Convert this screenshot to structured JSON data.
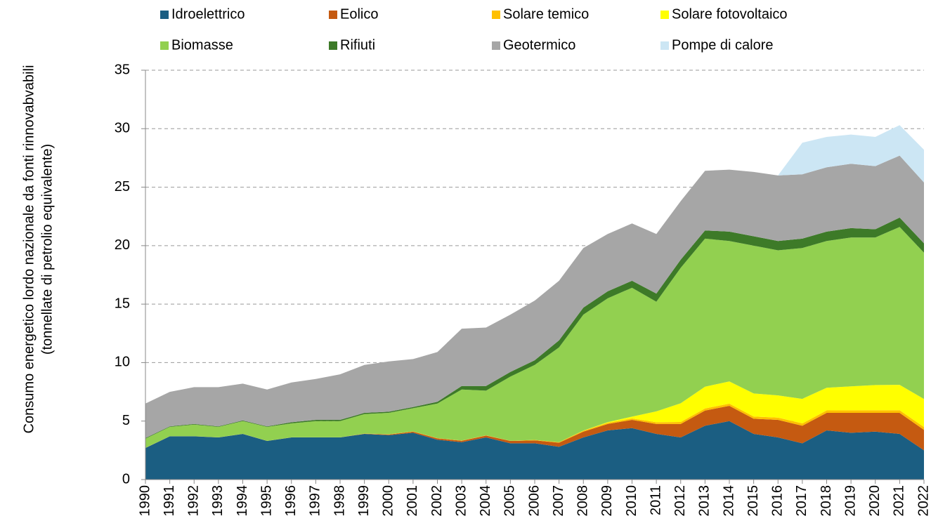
{
  "chart_data": {
    "type": "stacked_area",
    "ylabel": [
      "Consumo energetico lordo nazionale da fonti rinnovabvabili",
      "(tonnellate di petrolio equivalente)"
    ],
    "categories": [
      "1990",
      "1991",
      "1992",
      "1993",
      "1994",
      "1995",
      "1996",
      "1997",
      "1998",
      "1999",
      "2000",
      "2001",
      "2002",
      "2003",
      "2004",
      "2005",
      "2006",
      "2007",
      "2008",
      "2009",
      "2010",
      "2011",
      "2012",
      "2013",
      "2014",
      "2015",
      "2016",
      "2017",
      "2018",
      "2019",
      "2020",
      "2021",
      "2022"
    ],
    "series": [
      {
        "name": "Idroelettrico",
        "color": "#1b5e82",
        "values": [
          2.7,
          3.7,
          3.7,
          3.6,
          3.9,
          3.3,
          3.6,
          3.6,
          3.6,
          3.9,
          3.8,
          4.0,
          3.4,
          3.2,
          3.6,
          3.1,
          3.1,
          2.8,
          3.6,
          4.2,
          4.4,
          3.9,
          3.6,
          4.6,
          5.0,
          3.9,
          3.6,
          3.1,
          4.2,
          4.0,
          4.1,
          3.9,
          2.5
        ]
      },
      {
        "name": "Eolico",
        "color": "#c55a11",
        "values": [
          0,
          0,
          0,
          0,
          0,
          0,
          0,
          0,
          0,
          0.02,
          0.05,
          0.1,
          0.12,
          0.12,
          0.16,
          0.2,
          0.25,
          0.35,
          0.5,
          0.55,
          0.7,
          0.85,
          1.15,
          1.3,
          1.3,
          1.3,
          1.5,
          1.5,
          1.5,
          1.7,
          1.6,
          1.8,
          1.75
        ]
      },
      {
        "name": "Solare temico",
        "color": "#ffc000",
        "values": [
          0.01,
          0.01,
          0.01,
          0.01,
          0.01,
          0.01,
          0.01,
          0.01,
          0.01,
          0.01,
          0.02,
          0.02,
          0.02,
          0.02,
          0.02,
          0.02,
          0.04,
          0.05,
          0.07,
          0.1,
          0.12,
          0.15,
          0.17,
          0.18,
          0.19,
          0.19,
          0.2,
          0.2,
          0.21,
          0.22,
          0.23,
          0.23,
          0.24
        ]
      },
      {
        "name": "Solare fotovoltaico",
        "color": "#ffff00",
        "values": [
          0,
          0,
          0,
          0,
          0,
          0,
          0,
          0,
          0,
          0,
          0,
          0,
          0,
          0,
          0,
          0,
          0,
          0,
          0.02,
          0.06,
          0.16,
          0.93,
          1.6,
          1.86,
          1.9,
          1.97,
          1.9,
          2.1,
          1.94,
          2.05,
          2.15,
          2.17,
          2.4
        ]
      },
      {
        "name": "Biomasse",
        "color": "#92d050",
        "values": [
          0.79,
          0.79,
          0.99,
          0.89,
          1.09,
          1.19,
          1.19,
          1.39,
          1.39,
          1.67,
          1.83,
          1.98,
          2.96,
          4.36,
          3.82,
          5.48,
          6.41,
          8.1,
          9.91,
          10.59,
          11.02,
          9.37,
          11.58,
          12.66,
          12.01,
          12.64,
          12.4,
          12.9,
          12.55,
          12.73,
          12.62,
          13.5,
          12.51
        ]
      },
      {
        "name": "Rifiuti",
        "color": "#3d7a28",
        "values": [
          0.05,
          0.05,
          0.05,
          0.05,
          0.05,
          0.05,
          0.1,
          0.1,
          0.1,
          0.1,
          0.1,
          0.1,
          0.15,
          0.3,
          0.4,
          0.4,
          0.4,
          0.6,
          0.6,
          0.6,
          0.6,
          0.7,
          0.7,
          0.7,
          0.8,
          0.8,
          0.8,
          0.8,
          0.8,
          0.8,
          0.7,
          0.8,
          0.8
        ]
      },
      {
        "name": "Geotermico",
        "color": "#a6a6a6",
        "values": [
          2.95,
          2.95,
          3.15,
          3.35,
          3.15,
          3.15,
          3.4,
          3.5,
          3.9,
          4.1,
          4.3,
          4.1,
          4.25,
          4.9,
          5.0,
          4.9,
          5.1,
          5.1,
          5.1,
          4.9,
          4.9,
          5.1,
          5.0,
          5.1,
          5.3,
          5.5,
          5.6,
          5.5,
          5.5,
          5.5,
          5.4,
          5.3,
          5.2
        ]
      },
      {
        "name": "Pompe di calore",
        "color": "#cce6f4",
        "values": [
          null,
          null,
          null,
          null,
          null,
          null,
          null,
          null,
          null,
          null,
          null,
          null,
          null,
          null,
          null,
          null,
          null,
          null,
          null,
          null,
          null,
          null,
          null,
          null,
          null,
          null,
          0,
          2.7,
          2.6,
          2.5,
          2.5,
          2.6,
          2.8
        ]
      }
    ],
    "ylim": [
      0,
      35
    ],
    "yticks": [
      0,
      5,
      10,
      15,
      20,
      25,
      30,
      35
    ],
    "grid": true
  }
}
